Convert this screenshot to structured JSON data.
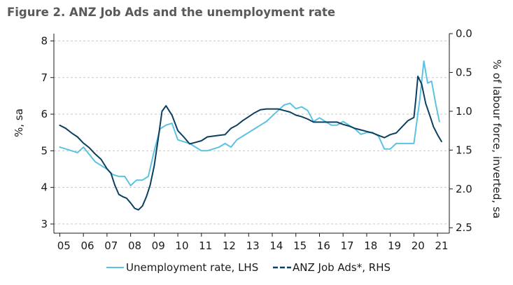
{
  "figure_title": "Figure 2. ANZ Job Ads and the unemployment rate",
  "colors": {
    "unemployment": "#5bc2e2",
    "job_ads": "#0b3f60",
    "grid": "#c8c8c8",
    "axis": "#1a1a1a"
  },
  "chart_data": {
    "type": "line",
    "title": "Figure 2. ANZ Job Ads and the unemployment rate",
    "xlabel": "",
    "x_tick_labels": [
      "05",
      "06",
      "07",
      "08",
      "09",
      "10",
      "11",
      "12",
      "13",
      "14",
      "15",
      "16",
      "17",
      "18",
      "19",
      "20",
      "21"
    ],
    "x_range": [
      2004.75,
      2021.5
    ],
    "ylabel_left": "%, sa",
    "ylim_left": [
      2.75,
      8.2
    ],
    "yticks_left": [
      "3",
      "4",
      "5",
      "6",
      "7",
      "8"
    ],
    "ylabel_right": "% of labour force, inverted, sa",
    "ylim_right_inverted": [
      0.0,
      2.57
    ],
    "yticks_right": [
      "0.0",
      "0.5",
      "1.0",
      "1.5",
      "2.0",
      "2.5"
    ],
    "grid": "horizontal dashed",
    "legend_position": "bottom",
    "legend": [
      "Unemployment rate, LHS",
      "ANZ Job Ads*, RHS"
    ],
    "series": [
      {
        "name": "Unemployment rate, LHS",
        "axis": "left",
        "x": [
          2005.0,
          2005.25,
          2005.5,
          2005.75,
          2006.0,
          2006.25,
          2006.5,
          2006.75,
          2007.0,
          2007.25,
          2007.5,
          2007.75,
          2008.0,
          2008.25,
          2008.5,
          2008.75,
          2009.0,
          2009.25,
          2009.5,
          2009.75,
          2010.0,
          2010.25,
          2010.5,
          2010.75,
          2011.0,
          2011.25,
          2011.5,
          2011.75,
          2012.0,
          2012.25,
          2012.5,
          2012.75,
          2013.0,
          2013.25,
          2013.5,
          2013.75,
          2014.0,
          2014.25,
          2014.5,
          2014.75,
          2015.0,
          2015.25,
          2015.5,
          2015.75,
          2016.0,
          2016.25,
          2016.5,
          2016.75,
          2017.0,
          2017.25,
          2017.5,
          2017.75,
          2018.0,
          2018.25,
          2018.5,
          2018.75,
          2019.0,
          2019.25,
          2019.5,
          2019.75,
          2020.0,
          2020.25,
          2020.42,
          2020.58,
          2020.75,
          2020.92,
          2021.08
        ],
        "values": [
          5.1,
          5.05,
          5.0,
          4.95,
          5.1,
          4.9,
          4.7,
          4.6,
          4.5,
          4.35,
          4.3,
          4.3,
          4.05,
          4.2,
          4.2,
          4.3,
          5.0,
          5.6,
          5.7,
          5.75,
          5.3,
          5.25,
          5.2,
          5.1,
          5.0,
          5.0,
          5.05,
          5.1,
          5.2,
          5.1,
          5.3,
          5.4,
          5.5,
          5.6,
          5.7,
          5.8,
          5.95,
          6.1,
          6.25,
          6.3,
          6.15,
          6.2,
          6.1,
          5.8,
          5.9,
          5.8,
          5.7,
          5.7,
          5.8,
          5.7,
          5.6,
          5.45,
          5.5,
          5.5,
          5.4,
          5.05,
          5.05,
          5.2,
          5.2,
          5.2,
          5.2,
          6.4,
          7.45,
          6.85,
          6.9,
          6.3,
          5.8
        ]
      },
      {
        "name": "ANZ Job Ads*, RHS",
        "axis": "right",
        "x": [
          2005.0,
          2005.25,
          2005.5,
          2005.75,
          2006.0,
          2006.25,
          2006.5,
          2006.75,
          2007.0,
          2007.17,
          2007.33,
          2007.5,
          2007.67,
          2007.83,
          2008.0,
          2008.17,
          2008.33,
          2008.5,
          2008.67,
          2008.83,
          2009.0,
          2009.17,
          2009.33,
          2009.5,
          2009.75,
          2010.0,
          2010.25,
          2010.5,
          2010.75,
          2011.0,
          2011.25,
          2011.5,
          2011.75,
          2012.0,
          2012.25,
          2012.5,
          2012.75,
          2013.0,
          2013.25,
          2013.5,
          2013.75,
          2014.0,
          2014.25,
          2014.5,
          2014.75,
          2015.0,
          2015.25,
          2015.5,
          2015.75,
          2016.0,
          2016.25,
          2016.5,
          2016.75,
          2017.0,
          2017.25,
          2017.5,
          2017.75,
          2018.0,
          2018.25,
          2018.5,
          2018.75,
          2019.0,
          2019.25,
          2019.5,
          2019.75,
          2020.0,
          2020.08,
          2020.17,
          2020.33,
          2020.5,
          2020.67,
          2020.83,
          2021.0,
          2021.17
        ],
        "values": [
          1.18,
          1.22,
          1.28,
          1.33,
          1.41,
          1.47,
          1.55,
          1.62,
          1.74,
          1.8,
          1.95,
          2.07,
          2.1,
          2.12,
          2.18,
          2.25,
          2.27,
          2.22,
          2.1,
          1.95,
          1.7,
          1.35,
          1.0,
          0.93,
          1.05,
          1.25,
          1.33,
          1.42,
          1.4,
          1.38,
          1.33,
          1.32,
          1.31,
          1.3,
          1.22,
          1.18,
          1.12,
          1.07,
          1.02,
          0.98,
          0.97,
          0.97,
          0.97,
          0.99,
          1.01,
          1.05,
          1.07,
          1.1,
          1.14,
          1.14,
          1.14,
          1.14,
          1.14,
          1.17,
          1.19,
          1.22,
          1.24,
          1.26,
          1.28,
          1.31,
          1.34,
          1.3,
          1.28,
          1.2,
          1.12,
          1.08,
          0.85,
          0.55,
          0.65,
          0.9,
          1.05,
          1.2,
          1.3,
          1.39
        ]
      }
    ]
  }
}
